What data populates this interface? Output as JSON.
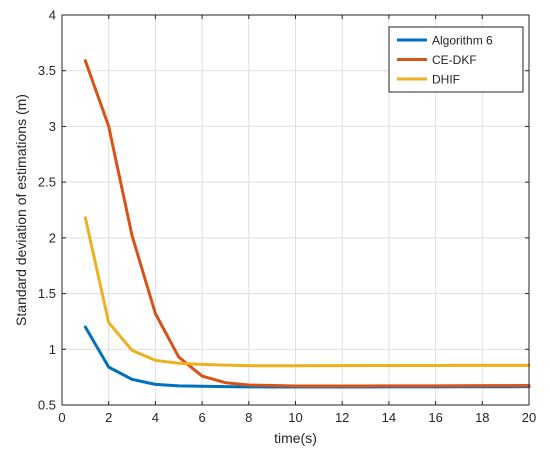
{
  "chart_data": {
    "type": "line",
    "xlabel": "time(s)",
    "ylabel": "Standard deviation of estimations (m)",
    "xlim": [
      0,
      20
    ],
    "ylim": [
      0.5,
      4
    ],
    "xticks": [
      0,
      2,
      4,
      6,
      8,
      10,
      12,
      14,
      16,
      18,
      20
    ],
    "yticks": [
      0.5,
      1,
      1.5,
      2,
      2.5,
      3,
      3.5,
      4
    ],
    "grid": true,
    "legend_position": "top-right",
    "x": [
      1,
      2,
      3,
      4,
      5,
      6,
      7,
      8,
      9,
      10,
      11,
      12,
      13,
      14,
      15,
      16,
      17,
      18,
      19,
      20
    ],
    "series": [
      {
        "name": "Algorithm 6",
        "color": "#0072BD",
        "values": [
          1.2,
          0.84,
          0.73,
          0.685,
          0.672,
          0.668,
          0.665,
          0.663,
          0.662,
          0.662,
          0.662,
          0.662,
          0.662,
          0.663,
          0.663,
          0.663,
          0.664,
          0.664,
          0.664,
          0.665
        ]
      },
      {
        "name": "CE-DKF",
        "color": "#D95319",
        "values": [
          3.59,
          3.0,
          2.02,
          1.32,
          0.93,
          0.76,
          0.7,
          0.68,
          0.675,
          0.67,
          0.67,
          0.67,
          0.67,
          0.672,
          0.672,
          0.672,
          0.673,
          0.674,
          0.674,
          0.675
        ]
      },
      {
        "name": "DHIF",
        "color": "#EDB120",
        "values": [
          2.18,
          1.24,
          0.99,
          0.9,
          0.875,
          0.865,
          0.858,
          0.853,
          0.852,
          0.852,
          0.853,
          0.853,
          0.854,
          0.854,
          0.855,
          0.855,
          0.856,
          0.856,
          0.856,
          0.856
        ]
      }
    ]
  }
}
